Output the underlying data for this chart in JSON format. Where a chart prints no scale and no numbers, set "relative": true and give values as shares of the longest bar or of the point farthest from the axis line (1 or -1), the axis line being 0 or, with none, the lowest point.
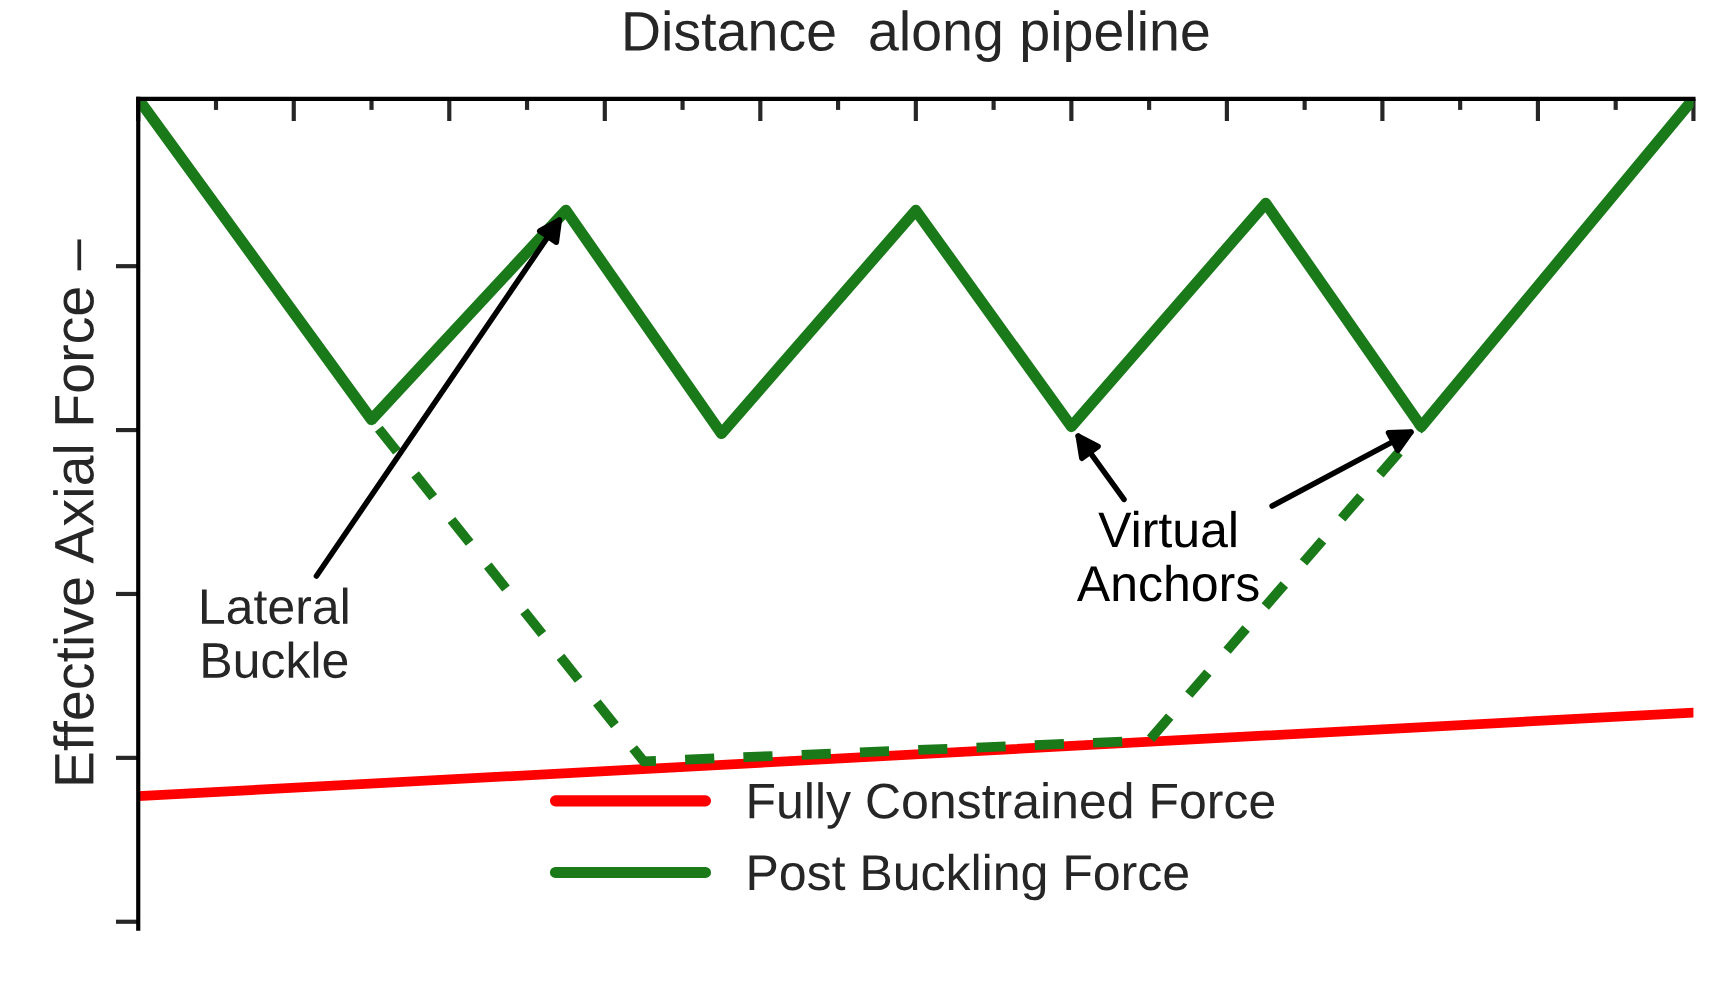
{
  "chart_data": {
    "type": "line",
    "relative": true,
    "xlabel": "Distance  along pipeline",
    "ylabel": "Effective Axial Force –",
    "categories": [
      null,
      null,
      null,
      null,
      null,
      null,
      null,
      null,
      null,
      null,
      null,
      null,
      null,
      null,
      null,
      null,
      null,
      null,
      null,
      null,
      null,
      null,
      null,
      null,
      null,
      null,
      null,
      null,
      null,
      null,
      null,
      null,
      null,
      null,
      null,
      null,
      null,
      null,
      null,
      null,
      null
    ],
    "series": [
      {
        "name": "Fully Constrained Force",
        "color": "#ff0000",
        "values": [
          -1,
          null,
          null,
          null,
          null,
          null,
          null,
          null,
          null,
          null,
          null,
          null,
          null,
          null,
          null,
          null,
          null,
          null,
          null,
          null,
          null,
          null,
          null,
          null,
          null,
          null,
          null,
          null,
          null,
          null,
          null,
          null,
          null,
          null,
          null,
          null,
          null,
          null,
          null,
          null,
          -0.88
        ]
      },
      {
        "color": "#1a7a1a",
        "line_style": "dashed",
        "values": [
          0,
          null,
          null,
          null,
          null,
          null,
          -0.46,
          null,
          null,
          null,
          null,
          null,
          null,
          -0.95,
          null,
          null,
          null,
          null,
          null,
          null,
          null,
          null,
          null,
          null,
          null,
          null,
          -0.92,
          null,
          null,
          null,
          null,
          null,
          null,
          -0.47,
          null,
          null,
          null,
          null,
          null,
          null,
          0
        ]
      },
      {
        "name": "Post Buckling Force",
        "color": "#1a7a1a",
        "values": [
          0,
          null,
          null,
          null,
          null,
          null,
          -0.46,
          null,
          null,
          null,
          null,
          -0.16,
          null,
          null,
          null,
          -0.48,
          null,
          null,
          null,
          null,
          -0.16,
          null,
          null,
          null,
          -0.47,
          null,
          null,
          null,
          null,
          -0.15,
          null,
          null,
          null,
          -0.47,
          null,
          null,
          null,
          null,
          null,
          null,
          0
        ]
      }
    ],
    "annotations": [
      "Lateral\nBuckle",
      "Virtual\nAnchors"
    ],
    "legend": "bottom",
    "grid": false,
    "tick_labels": false,
    "line_style": "solid"
  }
}
